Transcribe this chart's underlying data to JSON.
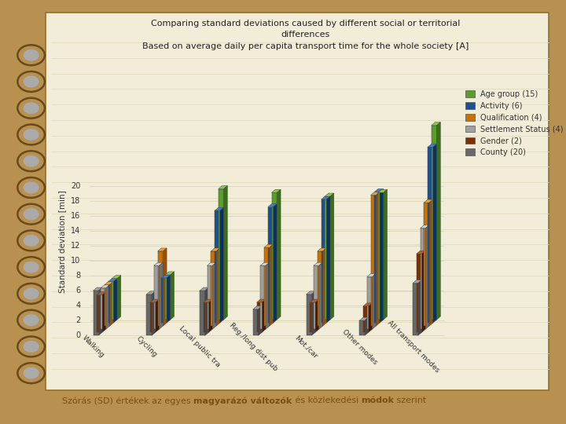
{
  "title_line1": "Comparing standard deviations caused by different social or territorial",
  "title_line2": "differences",
  "title_line3": "Based on average daily per capita transport time for the whole society [A]",
  "ylabel": "Standard deviation [min]",
  "categories": [
    "Walking",
    "Cycling",
    "Local public tra",
    "Reg./long dist pub",
    "Mot./car",
    "Other modes",
    "All transport modes"
  ],
  "series_labels": [
    "Age group (15)",
    "Activity (6)",
    "Qualification (4)",
    "Settlement Status (4)",
    "Gender (2)",
    "County (20)"
  ],
  "colors_front": [
    "#5a9e28",
    "#1a5096",
    "#cc7000",
    "#a0a0a0",
    "#7a3000",
    "#686868"
  ],
  "colors_top": [
    "#8aca52",
    "#4080c8",
    "#f0a030",
    "#d0d0d0",
    "#b06030",
    "#a0a0a0"
  ],
  "colors_side": [
    "#3a6e18",
    "#0a3066",
    "#9a5000",
    "#707070",
    "#4a1800",
    "#484848"
  ],
  "data": {
    "Age group (15)": [
      5.5,
      6.0,
      17.5,
      17.0,
      16.5,
      17.0,
      26.0
    ],
    "Activity (6)": [
      5.5,
      6.0,
      15.0,
      15.5,
      16.5,
      17.5,
      23.5
    ],
    "Qualification (4)": [
      5.5,
      10.0,
      10.0,
      10.5,
      10.0,
      17.5,
      16.5
    ],
    "Settlement Status (4)": [
      5.5,
      8.5,
      8.5,
      8.5,
      8.5,
      7.0,
      13.5
    ],
    "Gender (2)": [
      5.0,
      4.0,
      4.0,
      4.0,
      4.0,
      3.5,
      10.5
    ],
    "County (20)": [
      6.0,
      5.5,
      6.0,
      3.5,
      5.5,
      2.0,
      7.0
    ]
  },
  "ylim": [
    0,
    28
  ],
  "yticks": [
    0,
    2,
    4,
    6,
    8,
    10,
    12,
    14,
    16,
    18,
    20
  ],
  "bg_outer": "#b89050",
  "bg_inner": "#f2edd8",
  "grid_color": "#ddd8b8",
  "title_fontsize": 8.0,
  "axis_label_fontsize": 7.5,
  "tick_fontsize": 7.0,
  "legend_fontsize": 7.0,
  "bottom_text": "Szórás (SD) értékek az egyes ",
  "bottom_text_bold1": "magyarázó változók",
  "bottom_text_mid": " és közlekedési ",
  "bottom_text_bold2": "módok",
  "bottom_text_end": " szerint"
}
